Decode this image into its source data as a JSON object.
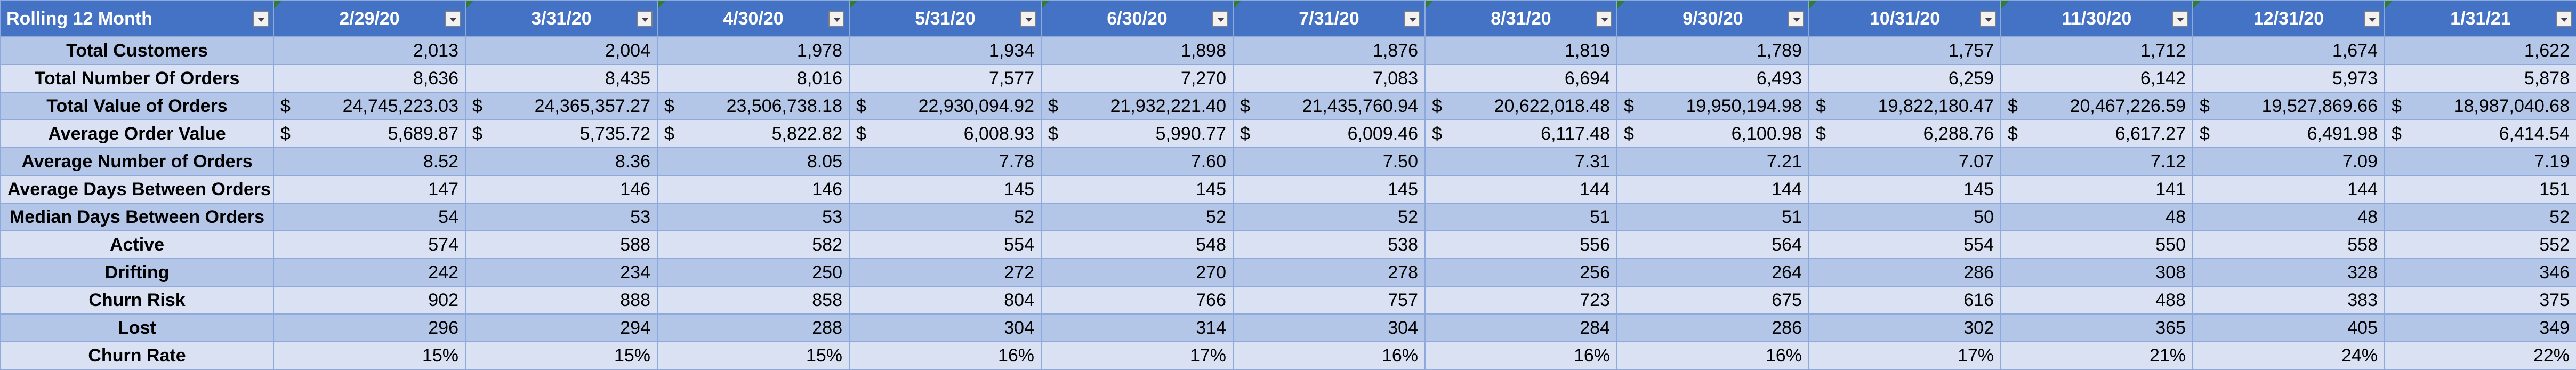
{
  "table": {
    "corner_label": "Rolling 12 Month",
    "months": [
      "2/29/20",
      "3/31/20",
      "4/30/20",
      "5/31/20",
      "6/30/20",
      "7/31/20",
      "8/31/20",
      "9/30/20",
      "10/31/20",
      "11/30/20",
      "12/31/20",
      "1/31/21"
    ],
    "rows": [
      {
        "label": "Total Customers",
        "values": [
          "2,013",
          "2,004",
          "1,978",
          "1,934",
          "1,898",
          "1,876",
          "1,819",
          "1,789",
          "1,757",
          "1,712",
          "1,674",
          "1,622"
        ]
      },
      {
        "label": "Total Number Of Orders",
        "values": [
          "8,636",
          "8,435",
          "8,016",
          "7,577",
          "7,270",
          "7,083",
          "6,694",
          "6,493",
          "6,259",
          "6,142",
          "5,973",
          "5,878"
        ]
      },
      {
        "label": "Total Value of Orders",
        "currency": "$",
        "values": [
          "24,745,223.03",
          "24,365,357.27",
          "23,506,738.18",
          "22,930,094.92",
          "21,932,221.40",
          "21,435,760.94",
          "20,622,018.48",
          "19,950,194.98",
          "19,822,180.47",
          "20,467,226.59",
          "19,527,869.66",
          "18,987,040.68"
        ]
      },
      {
        "label": "Average Order Value",
        "currency": "$",
        "values": [
          "5,689.87",
          "5,735.72",
          "5,822.82",
          "6,008.93",
          "5,990.77",
          "6,009.46",
          "6,117.48",
          "6,100.98",
          "6,288.76",
          "6,617.27",
          "6,491.98",
          "6,414.54"
        ]
      },
      {
        "label": "Average Number of Orders",
        "values": [
          "8.52",
          "8.36",
          "8.05",
          "7.78",
          "7.60",
          "7.50",
          "7.31",
          "7.21",
          "7.07",
          "7.12",
          "7.09",
          "7.19"
        ]
      },
      {
        "label": "Average Days Between Orders",
        "values": [
          "147",
          "146",
          "146",
          "145",
          "145",
          "145",
          "144",
          "144",
          "145",
          "141",
          "144",
          "151"
        ]
      },
      {
        "label": "Median Days Between Orders",
        "values": [
          "54",
          "53",
          "53",
          "52",
          "52",
          "52",
          "51",
          "51",
          "50",
          "48",
          "48",
          "52"
        ]
      },
      {
        "label": "Active",
        "values": [
          "574",
          "588",
          "582",
          "554",
          "548",
          "538",
          "556",
          "564",
          "554",
          "550",
          "558",
          "552"
        ]
      },
      {
        "label": "Drifting",
        "values": [
          "242",
          "234",
          "250",
          "272",
          "270",
          "278",
          "256",
          "264",
          "286",
          "308",
          "328",
          "346"
        ]
      },
      {
        "label": "Churn Risk",
        "values": [
          "902",
          "888",
          "858",
          "804",
          "766",
          "757",
          "723",
          "675",
          "616",
          "488",
          "383",
          "375"
        ]
      },
      {
        "label": "Lost",
        "values": [
          "296",
          "294",
          "288",
          "304",
          "314",
          "304",
          "284",
          "286",
          "302",
          "365",
          "405",
          "349"
        ]
      },
      {
        "label": "Churn Rate",
        "values": [
          "15%",
          "15%",
          "15%",
          "16%",
          "17%",
          "16%",
          "16%",
          "16%",
          "17%",
          "21%",
          "24%",
          "22%"
        ]
      }
    ]
  },
  "colors": {
    "header_bg": "#4472c4",
    "header_text": "#ffffff",
    "band_dark": "#b4c6e7",
    "band_light": "#d9e1f2",
    "grid": "#8ea9db"
  }
}
